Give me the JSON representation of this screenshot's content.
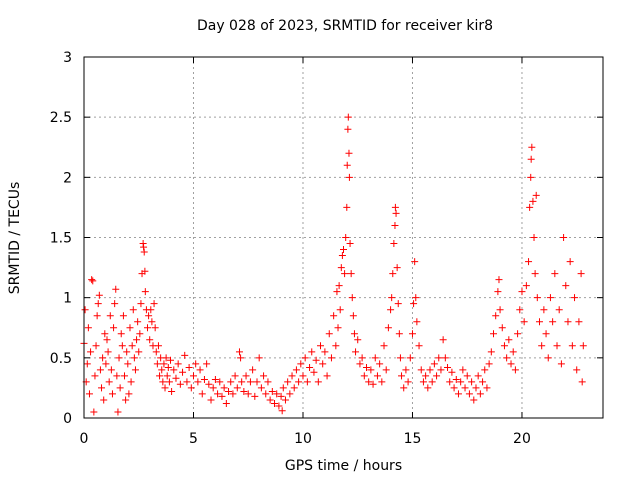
{
  "chart_data": {
    "type": "scatter",
    "title": "Day 028 of 2023, SRMTID for receiver kir8",
    "xlabel": "GPS time / hours",
    "ylabel": "SRMTID / TECUs",
    "xlim": [
      0,
      23.7
    ],
    "ylim": [
      0,
      3
    ],
    "xticks": [
      0,
      5,
      10,
      15,
      20
    ],
    "yticks": [
      0,
      0.5,
      1,
      1.5,
      2,
      2.5,
      3
    ],
    "xtick_labels": [
      "0",
      "5",
      "10",
      "15",
      "20"
    ],
    "ytick_labels": [
      "0",
      "0.5",
      "1",
      "1.5",
      "2",
      "2.5",
      "3"
    ],
    "grid": true,
    "marker": "+",
    "color": "#ff0000",
    "series": [
      {
        "name": "SRMTID",
        "points": [
          [
            0.0,
            0.62
          ],
          [
            0.05,
            0.9
          ],
          [
            0.1,
            0.3
          ],
          [
            0.15,
            0.45
          ],
          [
            0.2,
            0.75
          ],
          [
            0.25,
            0.2
          ],
          [
            0.3,
            0.55
          ],
          [
            0.35,
            1.15
          ],
          [
            0.4,
            1.14
          ],
          [
            0.45,
            0.05
          ],
          [
            0.5,
            0.35
          ],
          [
            0.55,
            0.6
          ],
          [
            0.6,
            0.85
          ],
          [
            0.65,
            0.95
          ],
          [
            0.7,
            1.02
          ],
          [
            0.75,
            0.4
          ],
          [
            0.8,
            0.25
          ],
          [
            0.85,
            0.5
          ],
          [
            0.9,
            0.15
          ],
          [
            0.95,
            0.7
          ],
          [
            1.0,
            0.45
          ],
          [
            1.05,
            0.65
          ],
          [
            1.1,
            0.55
          ],
          [
            1.15,
            0.3
          ],
          [
            1.2,
            0.85
          ],
          [
            1.25,
            0.4
          ],
          [
            1.3,
            0.2
          ],
          [
            1.35,
            0.75
          ],
          [
            1.4,
            0.95
          ],
          [
            1.45,
            1.07
          ],
          [
            1.5,
            0.35
          ],
          [
            1.55,
            0.05
          ],
          [
            1.6,
            0.5
          ],
          [
            1.65,
            0.25
          ],
          [
            1.7,
            0.7
          ],
          [
            1.75,
            0.6
          ],
          [
            1.8,
            0.85
          ],
          [
            1.85,
            0.35
          ],
          [
            1.9,
            0.15
          ],
          [
            1.95,
            0.55
          ],
          [
            2.0,
            0.45
          ],
          [
            2.05,
            0.2
          ],
          [
            2.1,
            0.75
          ],
          [
            2.15,
            0.3
          ],
          [
            2.2,
            0.6
          ],
          [
            2.25,
            0.9
          ],
          [
            2.3,
            0.5
          ],
          [
            2.35,
            0.4
          ],
          [
            2.4,
            0.65
          ],
          [
            2.45,
            0.8
          ],
          [
            2.5,
            0.55
          ],
          [
            2.55,
            0.7
          ],
          [
            2.6,
            0.95
          ],
          [
            2.65,
            1.2
          ],
          [
            2.7,
            1.45
          ],
          [
            2.72,
            1.42
          ],
          [
            2.75,
            1.38
          ],
          [
            2.78,
            1.22
          ],
          [
            2.8,
            1.05
          ],
          [
            2.85,
            0.9
          ],
          [
            2.9,
            0.75
          ],
          [
            2.95,
            0.85
          ],
          [
            3.0,
            0.65
          ],
          [
            3.05,
            0.9
          ],
          [
            3.1,
            0.8
          ],
          [
            3.15,
            0.6
          ],
          [
            3.2,
            0.95
          ],
          [
            3.25,
            0.75
          ],
          [
            3.3,
            0.55
          ],
          [
            3.35,
            0.45
          ],
          [
            3.4,
            0.6
          ],
          [
            3.45,
            0.35
          ],
          [
            3.5,
            0.5
          ],
          [
            3.55,
            0.4
          ],
          [
            3.6,
            0.3
          ],
          [
            3.65,
            0.45
          ],
          [
            3.7,
            0.25
          ],
          [
            3.75,
            0.5
          ],
          [
            3.8,
            0.35
          ],
          [
            3.85,
            0.42
          ],
          [
            3.9,
            0.3
          ],
          [
            3.95,
            0.48
          ],
          [
            4.0,
            0.22
          ],
          [
            4.1,
            0.4
          ],
          [
            4.2,
            0.33
          ],
          [
            4.3,
            0.45
          ],
          [
            4.4,
            0.28
          ],
          [
            4.5,
            0.38
          ],
          [
            4.6,
            0.52
          ],
          [
            4.7,
            0.3
          ],
          [
            4.8,
            0.42
          ],
          [
            4.9,
            0.25
          ],
          [
            5.0,
            0.35
          ],
          [
            5.1,
            0.45
          ],
          [
            5.2,
            0.3
          ],
          [
            5.3,
            0.4
          ],
          [
            5.4,
            0.2
          ],
          [
            5.5,
            0.32
          ],
          [
            5.6,
            0.45
          ],
          [
            5.7,
            0.28
          ],
          [
            5.8,
            0.15
          ],
          [
            5.9,
            0.25
          ],
          [
            6.0,
            0.32
          ],
          [
            6.1,
            0.2
          ],
          [
            6.2,
            0.3
          ],
          [
            6.3,
            0.18
          ],
          [
            6.4,
            0.25
          ],
          [
            6.5,
            0.12
          ],
          [
            6.6,
            0.22
          ],
          [
            6.7,
            0.3
          ],
          [
            6.8,
            0.2
          ],
          [
            6.9,
            0.35
          ],
          [
            7.0,
            0.25
          ],
          [
            7.1,
            0.55
          ],
          [
            7.15,
            0.5
          ],
          [
            7.2,
            0.3
          ],
          [
            7.3,
            0.22
          ],
          [
            7.4,
            0.35
          ],
          [
            7.5,
            0.2
          ],
          [
            7.6,
            0.3
          ],
          [
            7.7,
            0.4
          ],
          [
            7.8,
            0.18
          ],
          [
            7.9,
            0.3
          ],
          [
            8.0,
            0.5
          ],
          [
            8.1,
            0.25
          ],
          [
            8.2,
            0.35
          ],
          [
            8.3,
            0.2
          ],
          [
            8.4,
            0.3
          ],
          [
            8.5,
            0.15
          ],
          [
            8.6,
            0.22
          ],
          [
            8.7,
            0.12
          ],
          [
            8.8,
            0.2
          ],
          [
            8.9,
            0.1
          ],
          [
            9.0,
            0.18
          ],
          [
            9.05,
            0.06
          ],
          [
            9.1,
            0.25
          ],
          [
            9.2,
            0.15
          ],
          [
            9.3,
            0.3
          ],
          [
            9.4,
            0.2
          ],
          [
            9.5,
            0.35
          ],
          [
            9.6,
            0.25
          ],
          [
            9.7,
            0.4
          ],
          [
            9.8,
            0.3
          ],
          [
            9.9,
            0.45
          ],
          [
            10.0,
            0.35
          ],
          [
            10.1,
            0.5
          ],
          [
            10.2,
            0.3
          ],
          [
            10.3,
            0.42
          ],
          [
            10.4,
            0.55
          ],
          [
            10.5,
            0.38
          ],
          [
            10.6,
            0.48
          ],
          [
            10.7,
            0.3
          ],
          [
            10.8,
            0.6
          ],
          [
            10.9,
            0.45
          ],
          [
            11.0,
            0.55
          ],
          [
            11.1,
            0.35
          ],
          [
            11.2,
            0.7
          ],
          [
            11.3,
            0.5
          ],
          [
            11.4,
            0.85
          ],
          [
            11.5,
            0.6
          ],
          [
            11.55,
            1.05
          ],
          [
            11.6,
            0.75
          ],
          [
            11.65,
            1.1
          ],
          [
            11.7,
            0.9
          ],
          [
            11.75,
            1.25
          ],
          [
            11.8,
            1.35
          ],
          [
            11.85,
            1.4
          ],
          [
            11.9,
            1.2
          ],
          [
            11.95,
            1.5
          ],
          [
            12.0,
            1.75
          ],
          [
            12.02,
            2.1
          ],
          [
            12.05,
            2.4
          ],
          [
            12.07,
            2.5
          ],
          [
            12.1,
            2.2
          ],
          [
            12.12,
            2.0
          ],
          [
            12.15,
            1.45
          ],
          [
            12.2,
            1.2
          ],
          [
            12.25,
            1.0
          ],
          [
            12.3,
            0.85
          ],
          [
            12.35,
            0.7
          ],
          [
            12.4,
            0.55
          ],
          [
            12.5,
            0.65
          ],
          [
            12.6,
            0.45
          ],
          [
            12.7,
            0.5
          ],
          [
            12.8,
            0.35
          ],
          [
            12.9,
            0.42
          ],
          [
            13.0,
            0.3
          ],
          [
            13.1,
            0.4
          ],
          [
            13.2,
            0.28
          ],
          [
            13.3,
            0.5
          ],
          [
            13.4,
            0.35
          ],
          [
            13.5,
            0.45
          ],
          [
            13.6,
            0.3
          ],
          [
            13.7,
            0.6
          ],
          [
            13.8,
            0.4
          ],
          [
            13.9,
            0.75
          ],
          [
            14.0,
            0.9
          ],
          [
            14.05,
            1.0
          ],
          [
            14.1,
            1.2
          ],
          [
            14.15,
            1.45
          ],
          [
            14.2,
            1.6
          ],
          [
            14.22,
            1.75
          ],
          [
            14.25,
            1.7
          ],
          [
            14.3,
            1.25
          ],
          [
            14.35,
            0.95
          ],
          [
            14.4,
            0.7
          ],
          [
            14.45,
            0.5
          ],
          [
            14.5,
            0.35
          ],
          [
            14.6,
            0.25
          ],
          [
            14.7,
            0.4
          ],
          [
            14.8,
            0.3
          ],
          [
            14.9,
            0.5
          ],
          [
            15.0,
            0.7
          ],
          [
            15.05,
            0.95
          ],
          [
            15.1,
            1.3
          ],
          [
            15.15,
            1.0
          ],
          [
            15.2,
            0.8
          ],
          [
            15.3,
            0.6
          ],
          [
            15.4,
            0.4
          ],
          [
            15.5,
            0.3
          ],
          [
            15.6,
            0.35
          ],
          [
            15.7,
            0.25
          ],
          [
            15.8,
            0.4
          ],
          [
            15.9,
            0.3
          ],
          [
            16.0,
            0.45
          ],
          [
            16.1,
            0.35
          ],
          [
            16.2,
            0.5
          ],
          [
            16.3,
            0.4
          ],
          [
            16.4,
            0.65
          ],
          [
            16.5,
            0.5
          ],
          [
            16.6,
            0.42
          ],
          [
            16.7,
            0.3
          ],
          [
            16.8,
            0.38
          ],
          [
            16.9,
            0.25
          ],
          [
            17.0,
            0.32
          ],
          [
            17.1,
            0.2
          ],
          [
            17.2,
            0.3
          ],
          [
            17.3,
            0.4
          ],
          [
            17.4,
            0.25
          ],
          [
            17.5,
            0.35
          ],
          [
            17.6,
            0.2
          ],
          [
            17.7,
            0.3
          ],
          [
            17.8,
            0.15
          ],
          [
            17.9,
            0.25
          ],
          [
            18.0,
            0.35
          ],
          [
            18.1,
            0.2
          ],
          [
            18.2,
            0.3
          ],
          [
            18.3,
            0.4
          ],
          [
            18.4,
            0.25
          ],
          [
            18.5,
            0.45
          ],
          [
            18.6,
            0.55
          ],
          [
            18.7,
            0.7
          ],
          [
            18.8,
            0.85
          ],
          [
            18.9,
            1.05
          ],
          [
            18.95,
            1.15
          ],
          [
            19.0,
            0.9
          ],
          [
            19.1,
            0.75
          ],
          [
            19.2,
            0.6
          ],
          [
            19.3,
            0.5
          ],
          [
            19.4,
            0.65
          ],
          [
            19.5,
            0.45
          ],
          [
            19.6,
            0.55
          ],
          [
            19.7,
            0.4
          ],
          [
            19.8,
            0.7
          ],
          [
            19.9,
            0.9
          ],
          [
            20.0,
            1.05
          ],
          [
            20.1,
            0.8
          ],
          [
            20.2,
            1.1
          ],
          [
            20.3,
            1.3
          ],
          [
            20.35,
            1.75
          ],
          [
            20.4,
            2.0
          ],
          [
            20.42,
            2.15
          ],
          [
            20.45,
            2.25
          ],
          [
            20.5,
            1.8
          ],
          [
            20.55,
            1.5
          ],
          [
            20.6,
            1.2
          ],
          [
            20.65,
            1.85
          ],
          [
            20.7,
            1.0
          ],
          [
            20.8,
            0.8
          ],
          [
            20.9,
            0.6
          ],
          [
            21.0,
            0.9
          ],
          [
            21.1,
            0.7
          ],
          [
            21.2,
            0.5
          ],
          [
            21.3,
            1.0
          ],
          [
            21.4,
            0.8
          ],
          [
            21.5,
            1.2
          ],
          [
            21.6,
            0.6
          ],
          [
            21.7,
            0.9
          ],
          [
            21.8,
            0.45
          ],
          [
            21.9,
            1.5
          ],
          [
            22.0,
            1.1
          ],
          [
            22.1,
            0.8
          ],
          [
            22.2,
            1.3
          ],
          [
            22.3,
            0.6
          ],
          [
            22.4,
            1.0
          ],
          [
            22.5,
            0.4
          ],
          [
            22.6,
            0.8
          ],
          [
            22.7,
            1.2
          ],
          [
            22.75,
            0.3
          ],
          [
            22.8,
            0.6
          ]
        ]
      }
    ]
  }
}
